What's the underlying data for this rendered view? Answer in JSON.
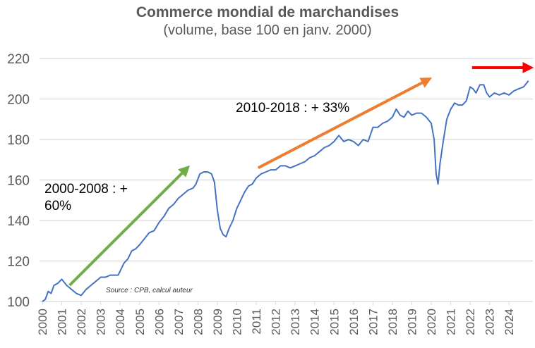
{
  "chart_data": {
    "type": "line",
    "title": "Commerce mondial de marchandises",
    "subtitle": "(volume, base 100 en janv. 2000)",
    "xlabel": "",
    "ylabel": "",
    "ylim": [
      100,
      220
    ],
    "xlim": [
      2000,
      2025.2
    ],
    "yticks": [
      "100",
      "120",
      "140",
      "160",
      "180",
      "200",
      "220"
    ],
    "xticks": [
      "2000",
      "2001",
      "2002",
      "2003",
      "2004",
      "2005",
      "2006",
      "2007",
      "2008",
      "2009",
      "2010",
      "2011",
      "2012",
      "2013",
      "2014",
      "2015",
      "2016",
      "2017",
      "2018",
      "2019",
      "2020",
      "2021",
      "2022",
      "2023",
      "2024"
    ],
    "grid": true,
    "series": [
      {
        "name": "Commerce mondial de marchandises",
        "color": "#4472C4",
        "x": [
          2000,
          2000.15,
          2000.3,
          2000.45,
          2000.6,
          2000.8,
          2001,
          2001.25,
          2001.5,
          2001.75,
          2002,
          2002.25,
          2002.5,
          2002.75,
          2003,
          2003.25,
          2003.5,
          2003.75,
          2003.9,
          2004.2,
          2004.4,
          2004.6,
          2004.8,
          2005,
          2005.25,
          2005.5,
          2005.75,
          2006,
          2006.25,
          2006.5,
          2006.75,
          2007,
          2007.25,
          2007.5,
          2007.75,
          2007.9,
          2008.1,
          2008.3,
          2008.5,
          2008.7,
          2008.85,
          2009,
          2009.15,
          2009.3,
          2009.45,
          2009.6,
          2009.8,
          2010,
          2010.2,
          2010.4,
          2010.6,
          2010.8,
          2011,
          2011.25,
          2011.5,
          2011.75,
          2012,
          2012.25,
          2012.5,
          2012.75,
          2013,
          2013.25,
          2013.5,
          2013.75,
          2014,
          2014.25,
          2014.5,
          2014.75,
          2015,
          2015.25,
          2015.5,
          2015.75,
          2016,
          2016.25,
          2016.5,
          2016.75,
          2017,
          2017.25,
          2017.5,
          2017.75,
          2018,
          2018.2,
          2018.4,
          2018.6,
          2018.8,
          2019,
          2019.25,
          2019.5,
          2019.75,
          2020,
          2020.15,
          2020.25,
          2020.35,
          2020.45,
          2020.6,
          2020.8,
          2021,
          2021.2,
          2021.4,
          2021.6,
          2021.8,
          2022,
          2022.15,
          2022.3,
          2022.5,
          2022.7,
          2022.85,
          2023,
          2023.25,
          2023.5,
          2023.75,
          2024,
          2024.25,
          2024.5,
          2024.75,
          2025
        ],
        "y": [
          100,
          101,
          105,
          104,
          108,
          109,
          111,
          108,
          106,
          104,
          103,
          106,
          108,
          110,
          112,
          112,
          113,
          113,
          113,
          119,
          121,
          125,
          126,
          128,
          131,
          134,
          135,
          139,
          142,
          146,
          148,
          151,
          153,
          155,
          156,
          158,
          163,
          164,
          164,
          163,
          159,
          145,
          136,
          133,
          132,
          136,
          140,
          146,
          150,
          154,
          157,
          158,
          161,
          163,
          164,
          165,
          165,
          167,
          167,
          166,
          167,
          168,
          169,
          171,
          172,
          174,
          176,
          177,
          179,
          182,
          179,
          180,
          179,
          177,
          180,
          179,
          186,
          186,
          188,
          189,
          191,
          195,
          192,
          191,
          194,
          192,
          193,
          193,
          191,
          188,
          180,
          163,
          158,
          168,
          178,
          190,
          195,
          198,
          197,
          197,
          199,
          206,
          205,
          203,
          207,
          207,
          203,
          201,
          203,
          202,
          203,
          202,
          204,
          205,
          206,
          209
        ]
      }
    ],
    "annotations": [
      {
        "text_line1": "2000-2008 : +",
        "text_line2": "60%"
      },
      {
        "text_line1": "2010-2018 : + 33%"
      }
    ],
    "arrows": [
      {
        "color": "#70AD47",
        "from": [
          2001.4,
          108
        ],
        "to": [
          2007.6,
          167
        ]
      },
      {
        "color": "#ED7D31",
        "from": [
          2011.1,
          166
        ],
        "to": [
          2020.0,
          211
        ]
      },
      {
        "color": "#FF0000",
        "from": [
          2022.1,
          215.5
        ],
        "to": [
          2025.2,
          215.5
        ]
      }
    ],
    "source": "Source : CPB, calcul auteur"
  }
}
